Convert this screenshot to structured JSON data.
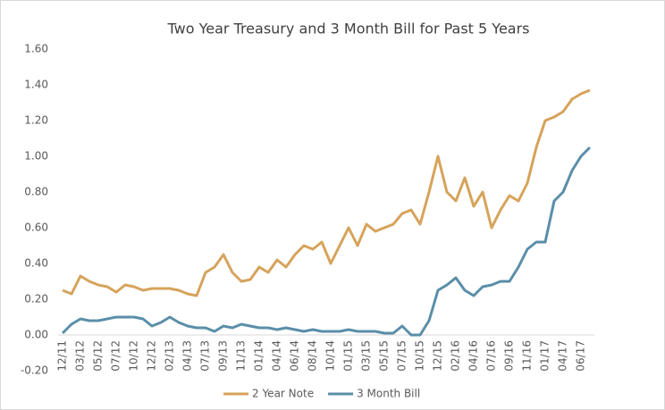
{
  "chart_data": {
    "type": "line",
    "title": "Two Year Treasury and 3 Month Bill for Past 5 Years",
    "categories": [
      "12/11",
      null,
      "03/12",
      null,
      "05/12",
      null,
      "07/12",
      null,
      "10/12",
      null,
      "12/12",
      null,
      "02/13",
      null,
      "04/13",
      null,
      "07/13",
      null,
      "09/13",
      null,
      "11/13",
      null,
      "01/14",
      null,
      "04/14",
      null,
      "06/14",
      null,
      "08/14",
      null,
      "10/14",
      null,
      "01/15",
      null,
      "03/15",
      null,
      "05/15",
      null,
      "07/15",
      null,
      "10/15",
      null,
      "12/15",
      null,
      "02/16",
      null,
      "04/16",
      null,
      "07/16",
      null,
      "09/16",
      null,
      "11/16",
      null,
      "01/17",
      null,
      "04/17",
      null,
      "06/17",
      null
    ],
    "series": [
      {
        "name": "2 Year Note",
        "color": "#d6a35b",
        "values": [
          0.25,
          0.23,
          0.33,
          0.3,
          0.28,
          0.27,
          0.24,
          0.28,
          0.27,
          0.25,
          0.26,
          0.26,
          0.26,
          0.25,
          0.23,
          0.22,
          0.35,
          0.38,
          0.45,
          0.35,
          0.3,
          0.31,
          0.38,
          0.35,
          0.42,
          0.38,
          0.45,
          0.5,
          0.48,
          0.52,
          0.4,
          0.5,
          0.6,
          0.5,
          0.62,
          0.58,
          0.6,
          0.62,
          0.68,
          0.7,
          0.62,
          0.8,
          1.0,
          0.8,
          0.75,
          0.88,
          0.72,
          0.8,
          0.6,
          0.7,
          0.78,
          0.75,
          0.85,
          1.05,
          1.2,
          1.22,
          1.25,
          1.32,
          1.35,
          1.37
        ]
      },
      {
        "name": "3 Month Bill",
        "color": "#5a8ea8",
        "values": [
          0.01,
          0.06,
          0.09,
          0.08,
          0.08,
          0.09,
          0.1,
          0.1,
          0.1,
          0.09,
          0.05,
          0.07,
          0.1,
          0.07,
          0.05,
          0.04,
          0.04,
          0.02,
          0.05,
          0.04,
          0.06,
          0.05,
          0.04,
          0.04,
          0.03,
          0.04,
          0.03,
          0.02,
          0.03,
          0.02,
          0.02,
          0.02,
          0.03,
          0.02,
          0.02,
          0.02,
          0.01,
          0.01,
          0.05,
          0.0,
          0.0,
          0.08,
          0.25,
          0.28,
          0.32,
          0.25,
          0.22,
          0.27,
          0.28,
          0.3,
          0.3,
          0.38,
          0.48,
          0.52,
          0.52,
          0.75,
          0.8,
          0.92,
          1.0,
          1.05
        ]
      }
    ],
    "ylim": [
      -0.2,
      1.6
    ],
    "yticks": [
      {
        "value": -0.2,
        "label": "-0.20"
      },
      {
        "value": 0,
        "label": "0.00"
      },
      {
        "value": 0.2,
        "label": "0.20"
      },
      {
        "value": 0.4,
        "label": "0.40"
      },
      {
        "value": 0.6,
        "label": "0.60"
      },
      {
        "value": 0.8,
        "label": "0.80"
      },
      {
        "value": 1,
        "label": "1.00"
      },
      {
        "value": 1.2,
        "label": "1.20"
      },
      {
        "value": 1.4,
        "label": "1.40"
      },
      {
        "value": 1.6,
        "label": "1.60"
      }
    ],
    "legend": "bottom"
  }
}
